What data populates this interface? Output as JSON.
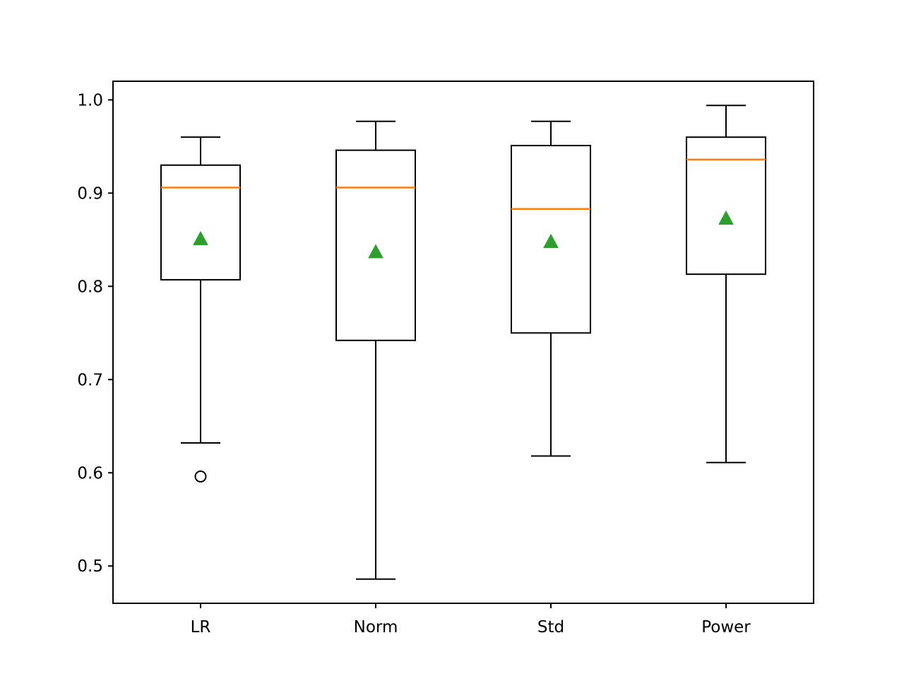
{
  "chart_data": {
    "type": "boxplot",
    "title": "",
    "xlabel": "",
    "ylabel": "",
    "ylim": [
      0.46,
      1.02
    ],
    "yticks": [
      0.5,
      0.6,
      0.7,
      0.8,
      0.9,
      1.0
    ],
    "ytick_labels": [
      "0.5",
      "0.6",
      "0.7",
      "0.8",
      "0.9",
      "1.0"
    ],
    "grid": false,
    "legend": "none",
    "show_means": true,
    "categories": [
      "LR",
      "Norm",
      "Std",
      "Power"
    ],
    "boxes": [
      {
        "name": "LR",
        "whisker_low": 0.632,
        "q1": 0.807,
        "median": 0.906,
        "q3": 0.93,
        "whisker_high": 0.96,
        "mean": 0.851,
        "outliers": [
          0.596
        ]
      },
      {
        "name": "Norm",
        "whisker_low": 0.486,
        "q1": 0.742,
        "median": 0.906,
        "q3": 0.946,
        "whisker_high": 0.977,
        "mean": 0.837,
        "outliers": []
      },
      {
        "name": "Std",
        "whisker_low": 0.618,
        "q1": 0.75,
        "median": 0.883,
        "q3": 0.951,
        "whisker_high": 0.977,
        "mean": 0.848,
        "outliers": []
      },
      {
        "name": "Power",
        "whisker_low": 0.611,
        "q1": 0.813,
        "median": 0.936,
        "q3": 0.96,
        "whisker_high": 0.994,
        "mean": 0.873,
        "outliers": []
      }
    ],
    "colors": {
      "box": "#000000",
      "median": "#ff7f0e",
      "mean_marker": "#2ca02c",
      "outlier": "#000000"
    }
  }
}
